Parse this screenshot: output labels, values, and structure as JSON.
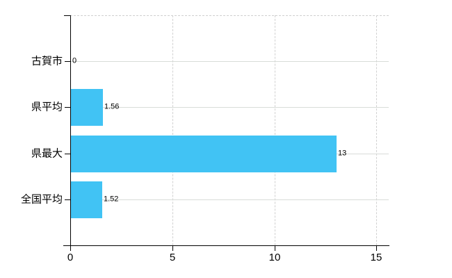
{
  "chart_data": {
    "type": "bar",
    "orientation": "horizontal",
    "title": "",
    "categories": [
      "古賀市",
      "県平均",
      "県最大",
      "全国平均"
    ],
    "values": [
      0,
      1.56,
      13,
      1.52
    ],
    "value_labels": [
      "0",
      "1.56",
      "13",
      "1.52"
    ],
    "xticks": [
      0,
      5,
      10,
      15
    ],
    "xtick_labels": [
      "0",
      "5",
      "10",
      "15"
    ],
    "xlim": [
      0,
      15.6
    ],
    "grid": true,
    "legend_position": "none",
    "bar_color": "#41c3f4",
    "axis_color": "#000000",
    "hgrid_color": "#d8dcd8",
    "vgrid_color": "#d1d1d1",
    "background_color": "#ffffff"
  }
}
